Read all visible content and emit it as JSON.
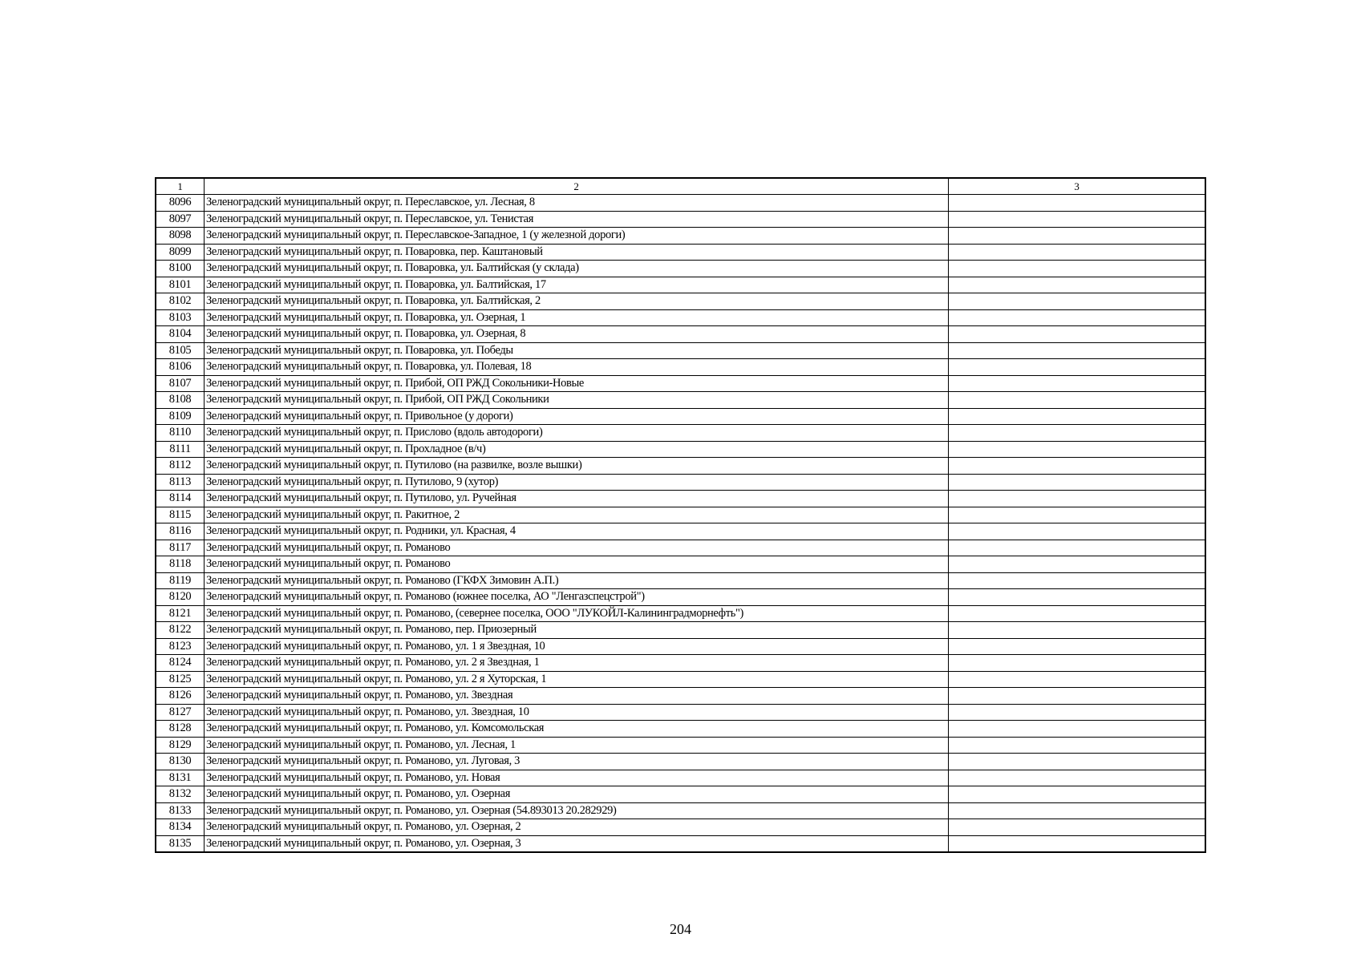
{
  "table": {
    "header": [
      "1",
      "2",
      "3"
    ],
    "rows": [
      {
        "num": "8096",
        "address": "Зеленоградский муниципальный округ, п. Переславское, ул. Лесная, 8",
        "col3": ""
      },
      {
        "num": "8097",
        "address": "Зеленоградский муниципальный округ, п. Переславское, ул. Тенистая",
        "col3": ""
      },
      {
        "num": "8098",
        "address": "Зеленоградский муниципальный округ, п. Переславское-Западное, 1 (у железной дороги)",
        "col3": ""
      },
      {
        "num": "8099",
        "address": "Зеленоградский муниципальный округ, п. Поваровка, пер. Каштановый",
        "col3": ""
      },
      {
        "num": "8100",
        "address": "Зеленоградский муниципальный округ, п. Поваровка, ул. Балтийская (у склада)",
        "col3": ""
      },
      {
        "num": "8101",
        "address": "Зеленоградский муниципальный округ, п. Поваровка, ул. Балтийская, 17",
        "col3": ""
      },
      {
        "num": "8102",
        "address": "Зеленоградский муниципальный округ, п. Поваровка, ул. Балтийская, 2",
        "col3": ""
      },
      {
        "num": "8103",
        "address": "Зеленоградский муниципальный округ, п. Поваровка, ул. Озерная, 1",
        "col3": ""
      },
      {
        "num": "8104",
        "address": "Зеленоградский муниципальный округ, п. Поваровка, ул. Озерная, 8",
        "col3": ""
      },
      {
        "num": "8105",
        "address": "Зеленоградский муниципальный округ, п. Поваровка, ул. Победы",
        "col3": ""
      },
      {
        "num": "8106",
        "address": "Зеленоградский муниципальный округ, п. Поваровка, ул. Полевая, 18",
        "col3": ""
      },
      {
        "num": "8107",
        "address": "Зеленоградский муниципальный округ, п. Прибой, ОП  РЖД Сокольники-Новые",
        "col3": ""
      },
      {
        "num": "8108",
        "address": "Зеленоградский муниципальный округ, п. Прибой, ОП РЖД Сокольники",
        "col3": ""
      },
      {
        "num": "8109",
        "address": "Зеленоградский муниципальный округ, п. Привольное (у дороги)",
        "col3": ""
      },
      {
        "num": "8110",
        "address": "Зеленоградский муниципальный округ, п. Прислово (вдоль автодороги)",
        "col3": ""
      },
      {
        "num": "8111",
        "address": "Зеленоградский муниципальный округ, п. Прохладное (в/ч)",
        "col3": ""
      },
      {
        "num": "8112",
        "address": "Зеленоградский муниципальный округ, п. Путилово (на развилке, возле вышки)",
        "col3": ""
      },
      {
        "num": "8113",
        "address": "Зеленоградский муниципальный округ, п. Путилово, 9 (хутор)",
        "col3": ""
      },
      {
        "num": "8114",
        "address": "Зеленоградский муниципальный округ, п. Путилово, ул. Ручейная",
        "col3": ""
      },
      {
        "num": "8115",
        "address": "Зеленоградский муниципальный округ, п. Ракитное, 2",
        "col3": ""
      },
      {
        "num": "8116",
        "address": "Зеленоградский муниципальный округ, п. Родники, ул. Красная, 4",
        "col3": ""
      },
      {
        "num": "8117",
        "address": "Зеленоградский муниципальный округ, п. Романово",
        "col3": ""
      },
      {
        "num": "8118",
        "address": "Зеленоградский муниципальный округ, п. Романово",
        "col3": ""
      },
      {
        "num": "8119",
        "address": "Зеленоградский муниципальный округ, п. Романово (ГКФХ Зимовин А.П.)",
        "col3": ""
      },
      {
        "num": "8120",
        "address": "Зеленоградский муниципальный округ, п. Романово (южнее поселка, АО \"Ленгазспецстрой\")",
        "col3": ""
      },
      {
        "num": "8121",
        "address": "Зеленоградский муниципальный округ, п. Романово, (севернее поселка, ООО \"ЛУКОЙЛ-Калининградморнефть\")",
        "col3": ""
      },
      {
        "num": "8122",
        "address": "Зеленоградский муниципальный округ, п. Романово, пер. Приозерный",
        "col3": ""
      },
      {
        "num": "8123",
        "address": "Зеленоградский муниципальный округ, п. Романово, ул. 1 я Звездная, 10",
        "col3": ""
      },
      {
        "num": "8124",
        "address": "Зеленоградский муниципальный округ, п. Романово, ул. 2  я Звездная, 1",
        "col3": ""
      },
      {
        "num": "8125",
        "address": "Зеленоградский муниципальный округ, п. Романово, ул. 2 я Хуторская, 1",
        "col3": ""
      },
      {
        "num": "8126",
        "address": "Зеленоградский муниципальный округ, п. Романово, ул. Звездная",
        "col3": ""
      },
      {
        "num": "8127",
        "address": "Зеленоградский муниципальный округ, п. Романово, ул. Звездная, 10",
        "col3": ""
      },
      {
        "num": "8128",
        "address": "Зеленоградский муниципальный округ, п. Романово, ул. Комсомольская",
        "col3": ""
      },
      {
        "num": "8129",
        "address": "Зеленоградский муниципальный округ, п. Романово, ул. Лесная, 1",
        "col3": ""
      },
      {
        "num": "8130",
        "address": "Зеленоградский муниципальный округ, п. Романово, ул. Луговая, 3",
        "col3": ""
      },
      {
        "num": "8131",
        "address": "Зеленоградский муниципальный округ, п. Романово, ул. Новая",
        "col3": ""
      },
      {
        "num": "8132",
        "address": "Зеленоградский муниципальный округ, п. Романово, ул. Озерная",
        "col3": ""
      },
      {
        "num": "8133",
        "address": "Зеленоградский муниципальный округ, п. Романово, ул. Озерная (54.893013 20.282929)",
        "col3": ""
      },
      {
        "num": "8134",
        "address": "Зеленоградский муниципальный округ, п. Романово, ул. Озерная, 2",
        "col3": ""
      },
      {
        "num": "8135",
        "address": "Зеленоградский муниципальный округ, п. Романово, ул. Озерная, 3",
        "col3": ""
      }
    ]
  },
  "page_number": "204"
}
